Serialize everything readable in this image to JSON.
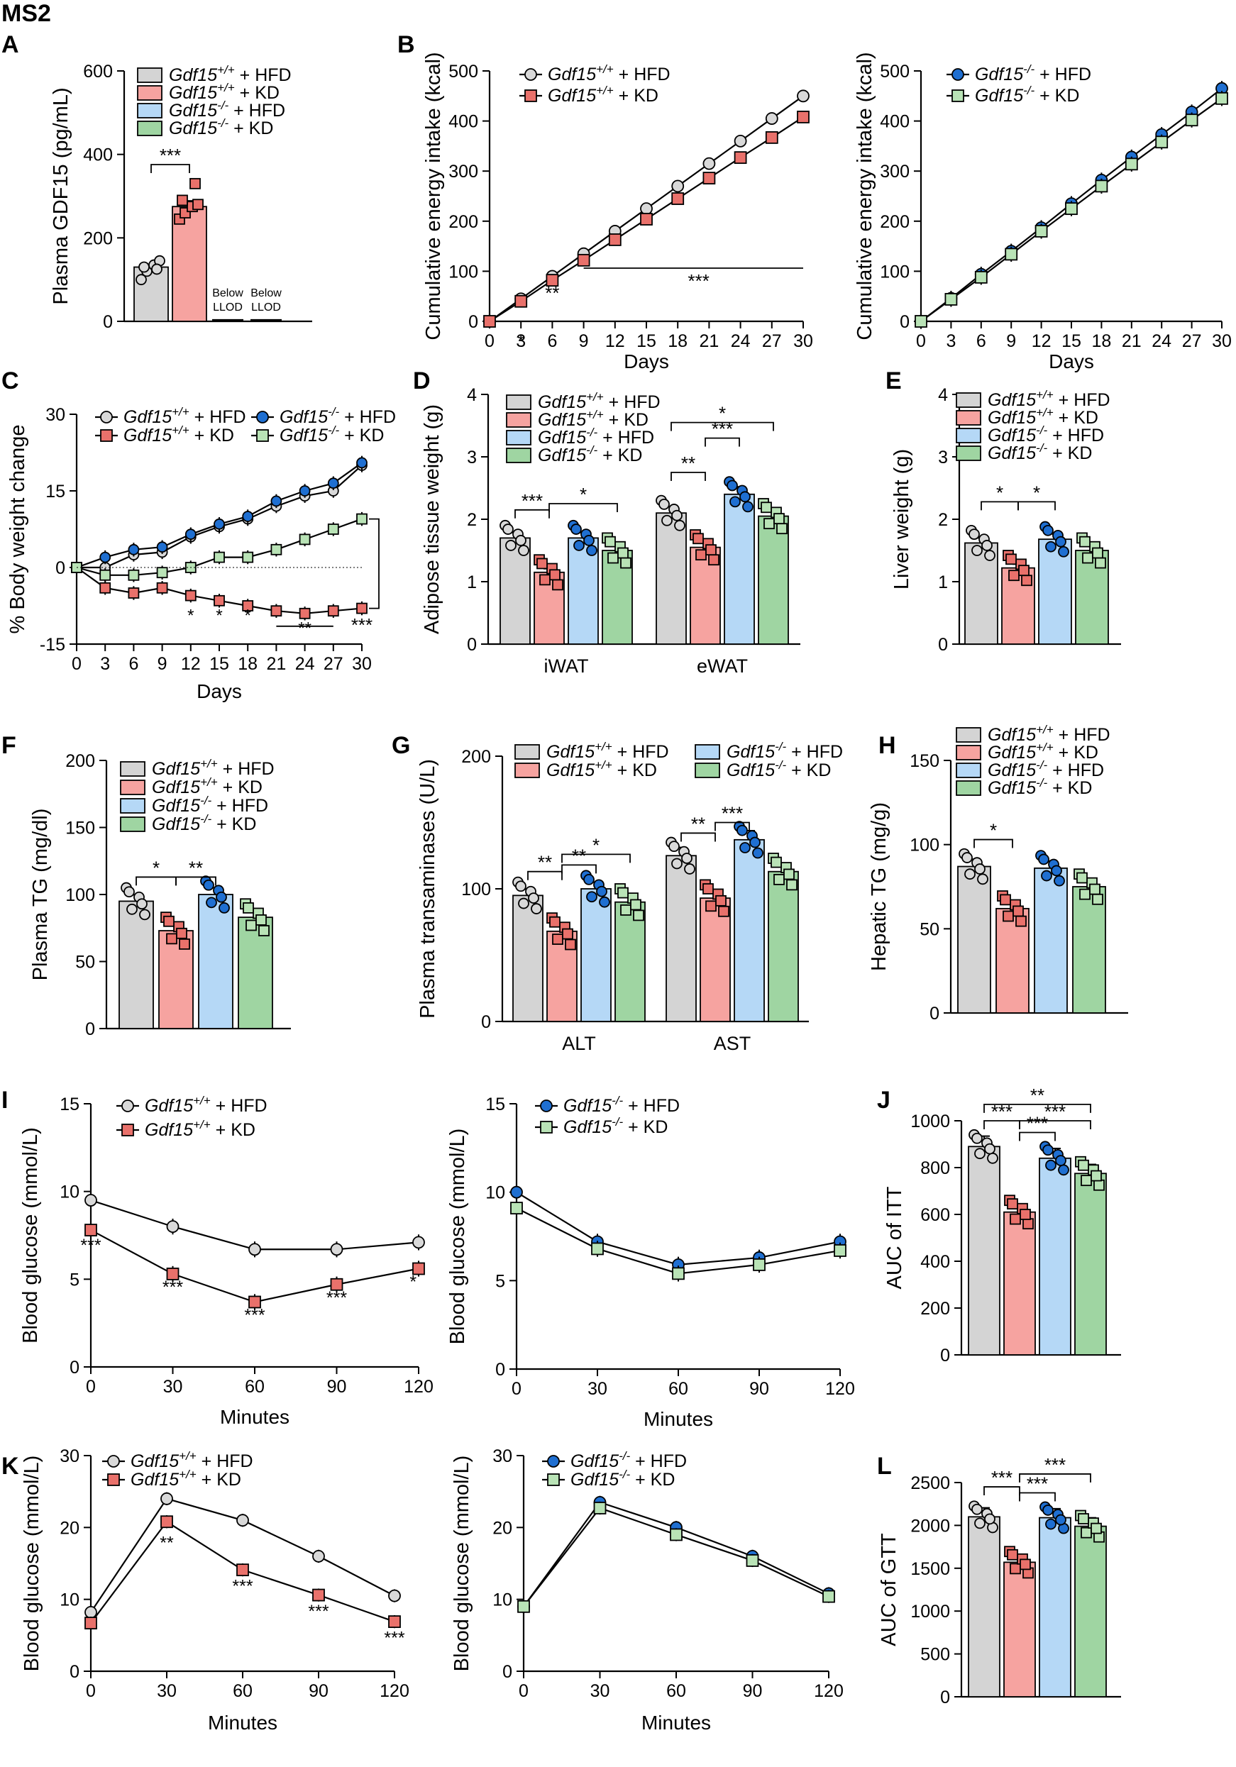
{
  "figure_label": "MS2",
  "colors": {
    "wt_hfd": "#d4d4d4",
    "wt_kd": "#f6a3a0",
    "ko_hfd": "#b5d8f6",
    "ko_kd": "#9fd5a2",
    "wt_kd_marker": "#e9716b",
    "ko_hfd_marker": "#1f6fd1",
    "ko_kd_marker": "#b9e3b6"
  },
  "legend_groups": {
    "wt_hfd": {
      "gene": "Gdf15",
      "sup": "+/+",
      "tail": " + HFD"
    },
    "wt_kd": {
      "gene": "Gdf15",
      "sup": "+/+",
      "tail": " + KD"
    },
    "ko_hfd": {
      "gene": "Gdf15",
      "sup": "-/-",
      "tail": " + HFD"
    },
    "ko_kd": {
      "gene": "Gdf15",
      "sup": "-/-",
      "tail": " + KD"
    }
  },
  "chart_data": [
    {
      "panel": "A",
      "type": "bar",
      "ylabel": "Plasma GDF15 (pg/mL)",
      "ylim": [
        0,
        600
      ],
      "yticks": [
        0,
        200,
        400,
        600
      ],
      "groups": [
        "wt_hfd",
        "wt_kd",
        "ko_hfd",
        "ko_kd"
      ],
      "values": [
        130,
        275,
        0,
        0
      ],
      "annotations": [
        "Below\nLLOD",
        "Below\nLLOD"
      ],
      "points": [
        [
          100,
          120,
          135,
          145,
          130,
          125
        ],
        [
          245,
          260,
          275,
          280,
          290,
          330
        ]
      ],
      "legend": [
        "wt_hfd",
        "wt_kd",
        "ko_hfd",
        "ko_kd"
      ],
      "legend_pos": "top-right",
      "significance": [
        {
          "label": "***",
          "between": [
            0,
            1
          ]
        }
      ]
    },
    {
      "panel": "B",
      "type": "line",
      "xlabel": "Days",
      "ylabel": "Cumulative energy intake (kcal)",
      "xlim": [
        0,
        30
      ],
      "ylim": [
        0,
        500
      ],
      "xticks": [
        0,
        3,
        6,
        9,
        12,
        15,
        18,
        21,
        24,
        27,
        30
      ],
      "yticks": [
        0,
        100,
        200,
        300,
        400,
        500
      ],
      "x": [
        0,
        3,
        6,
        9,
        12,
        15,
        18,
        21,
        24,
        27,
        30
      ],
      "series": [
        {
          "group": "wt_hfd",
          "values": [
            0,
            45,
            90,
            135,
            180,
            225,
            270,
            315,
            360,
            405,
            450
          ]
        },
        {
          "group": "wt_kd",
          "values": [
            0,
            40,
            82,
            122,
            163,
            204,
            245,
            286,
            327,
            367,
            408
          ]
        }
      ],
      "stars": [
        {
          "x": 3,
          "label": "*"
        },
        {
          "x": 6,
          "label": "**"
        },
        {
          "x": 20,
          "label": "***"
        }
      ]
    },
    {
      "panel": "B2",
      "type": "line",
      "xlabel": "Days",
      "ylabel": "Cumulative energy intake (kcal)",
      "xlim": [
        0,
        30
      ],
      "ylim": [
        0,
        500
      ],
      "xticks": [
        0,
        3,
        6,
        9,
        12,
        15,
        18,
        21,
        24,
        27,
        30
      ],
      "yticks": [
        0,
        100,
        200,
        300,
        400,
        500
      ],
      "x": [
        0,
        3,
        6,
        9,
        12,
        15,
        18,
        21,
        24,
        27,
        30
      ],
      "series": [
        {
          "group": "ko_hfd",
          "values": [
            0,
            46,
            94,
            140,
            187,
            235,
            282,
            328,
            373,
            418,
            465
          ]
        },
        {
          "group": "ko_kd",
          "values": [
            0,
            44,
            88,
            134,
            180,
            225,
            270,
            314,
            358,
            402,
            445
          ]
        }
      ]
    },
    {
      "panel": "C",
      "type": "line",
      "xlabel": "Days",
      "ylabel": "% Body weight change",
      "xlim": [
        0,
        30
      ],
      "ylim": [
        -15,
        30
      ],
      "xticks": [
        0,
        3,
        6,
        9,
        12,
        15,
        18,
        21,
        24,
        27,
        30
      ],
      "yticks": [
        -15,
        0,
        15,
        30
      ],
      "x": [
        0,
        3,
        6,
        9,
        12,
        15,
        18,
        21,
        24,
        27,
        30
      ],
      "series": [
        {
          "group": "wt_hfd",
          "values": [
            0,
            0,
            2.5,
            3,
            6,
            8,
            9.5,
            12,
            14,
            15,
            20
          ]
        },
        {
          "group": "wt_kd",
          "values": [
            0,
            -4,
            -5,
            -4,
            -5.5,
            -6.5,
            -7.5,
            -8.5,
            -9,
            -8.5,
            -8
          ]
        },
        {
          "group": "ko_hfd",
          "values": [
            0,
            2,
            3.5,
            4,
            6.5,
            8.5,
            10,
            13,
            15,
            16.5,
            20.5
          ]
        },
        {
          "group": "ko_kd",
          "values": [
            0,
            -1.5,
            -1.5,
            -1,
            0,
            2,
            2,
            3.5,
            5.5,
            7.5,
            9.5
          ]
        }
      ],
      "stars": [
        {
          "x": 12,
          "label": "*"
        },
        {
          "x": 15,
          "label": "*"
        },
        {
          "x": 18,
          "label": "*"
        },
        {
          "x": 24,
          "label": "**"
        },
        {
          "x": 30,
          "label": "***"
        }
      ]
    },
    {
      "panel": "D",
      "type": "bar",
      "ylabel": "Adipose tissue weight (g)",
      "ylim": [
        0,
        4
      ],
      "yticks": [
        0,
        1,
        2,
        3,
        4
      ],
      "categories": [
        "iWAT",
        "eWAT"
      ],
      "series": [
        {
          "group": "wt_hfd",
          "values": [
            1.7,
            2.1
          ]
        },
        {
          "group": "wt_kd",
          "values": [
            1.15,
            1.55
          ]
        },
        {
          "group": "ko_hfd",
          "values": [
            1.7,
            2.4
          ]
        },
        {
          "group": "ko_kd",
          "values": [
            1.5,
            2.05
          ]
        }
      ],
      "significance": [
        "***",
        "*",
        "**",
        "***",
        "*"
      ]
    },
    {
      "panel": "E",
      "type": "bar",
      "ylabel": "Liver weight (g)",
      "ylim": [
        0,
        4
      ],
      "yticks": [
        0,
        1,
        2,
        3,
        4
      ],
      "groups": [
        "wt_hfd",
        "wt_kd",
        "ko_hfd",
        "ko_kd"
      ],
      "values": [
        1.62,
        1.22,
        1.68,
        1.5
      ],
      "significance": [
        "*",
        "*"
      ]
    },
    {
      "panel": "F",
      "type": "bar",
      "ylabel": "Plasma TG (mg/dl)",
      "ylim": [
        0,
        200
      ],
      "yticks": [
        0,
        50,
        100,
        150,
        200
      ],
      "groups": [
        "wt_hfd",
        "wt_kd",
        "ko_hfd",
        "ko_kd"
      ],
      "values": [
        95,
        73,
        100,
        83
      ],
      "significance": [
        "*",
        "**"
      ]
    },
    {
      "panel": "G",
      "type": "bar",
      "ylabel": "Plasma transaminases (U/L)",
      "ylim": [
        0,
        200
      ],
      "yticks": [
        0,
        100,
        200
      ],
      "categories": [
        "ALT",
        "AST"
      ],
      "series": [
        {
          "group": "wt_hfd",
          "values": [
            95,
            125
          ]
        },
        {
          "group": "wt_kd",
          "values": [
            68,
            93
          ]
        },
        {
          "group": "ko_hfd",
          "values": [
            100,
            137
          ]
        },
        {
          "group": "ko_kd",
          "values": [
            90,
            113
          ]
        }
      ],
      "significance": [
        "**",
        "**",
        "*",
        "**",
        "***"
      ]
    },
    {
      "panel": "H",
      "type": "bar",
      "ylabel": "Hepatic TG (mg/g)",
      "ylim": [
        0,
        150
      ],
      "yticks": [
        0,
        50,
        100,
        150
      ],
      "groups": [
        "wt_hfd",
        "wt_kd",
        "ko_hfd",
        "ko_kd"
      ],
      "values": [
        87,
        62,
        86,
        75
      ],
      "significance": [
        "*"
      ]
    },
    {
      "panel": "I",
      "type": "line",
      "xlabel": "Minutes",
      "ylabel": "Blood glucose (mmol/L)",
      "xlim": [
        0,
        120
      ],
      "ylim": [
        0,
        15
      ],
      "xticks": [
        0,
        30,
        60,
        90,
        120
      ],
      "yticks": [
        0,
        5,
        10,
        15
      ],
      "x": [
        0,
        30,
        60,
        90,
        120
      ],
      "series": [
        {
          "group": "wt_hfd",
          "values": [
            9.5,
            8,
            6.7,
            6.7,
            7.1
          ]
        },
        {
          "group": "wt_kd",
          "values": [
            7.8,
            5.3,
            3.7,
            4.7,
            5.6
          ]
        }
      ],
      "stars": [
        "***",
        "***",
        "***",
        "***",
        "*"
      ]
    },
    {
      "panel": "I2",
      "type": "line",
      "xlabel": "Minutes",
      "ylabel": "Blood glucose (mmol/L)",
      "xlim": [
        0,
        120
      ],
      "ylim": [
        0,
        15
      ],
      "xticks": [
        0,
        30,
        60,
        90,
        120
      ],
      "yticks": [
        0,
        5,
        10,
        15
      ],
      "x": [
        0,
        30,
        60,
        90,
        120
      ],
      "series": [
        {
          "group": "ko_hfd",
          "values": [
            10,
            7.2,
            5.9,
            6.3,
            7.2
          ]
        },
        {
          "group": "ko_kd",
          "values": [
            9.1,
            6.8,
            5.4,
            5.9,
            6.7
          ]
        }
      ]
    },
    {
      "panel": "J",
      "type": "bar",
      "ylabel": "AUC of ITT",
      "ylim": [
        0,
        1000
      ],
      "yticks": [
        0,
        200,
        400,
        600,
        800,
        1000
      ],
      "groups": [
        "wt_hfd",
        "wt_kd",
        "ko_hfd",
        "ko_kd"
      ],
      "values": [
        890,
        610,
        840,
        775
      ],
      "significance": [
        "***",
        "**",
        "***",
        "***"
      ]
    },
    {
      "panel": "K",
      "type": "line",
      "xlabel": "Minutes",
      "ylabel": "Blood glucose (mmol/L)",
      "xlim": [
        0,
        120
      ],
      "ylim": [
        0,
        30
      ],
      "xticks": [
        0,
        30,
        60,
        90,
        120
      ],
      "yticks": [
        0,
        10,
        20,
        30
      ],
      "x": [
        0,
        30,
        60,
        90,
        120
      ],
      "series": [
        {
          "group": "wt_hfd",
          "values": [
            8.2,
            24,
            21,
            16,
            10.5
          ]
        },
        {
          "group": "wt_kd",
          "values": [
            6.7,
            20.8,
            14.1,
            10.6,
            6.9
          ]
        }
      ],
      "stars": [
        "",
        "**",
        "***",
        "***",
        "***"
      ]
    },
    {
      "panel": "K2",
      "type": "line",
      "xlabel": "Minutes",
      "ylabel": "Blood glucose (mmol/L)",
      "xlim": [
        0,
        120
      ],
      "ylim": [
        0,
        30
      ],
      "xticks": [
        0,
        30,
        60,
        90,
        120
      ],
      "yticks": [
        0,
        10,
        20,
        30
      ],
      "x": [
        0,
        30,
        60,
        90,
        120
      ],
      "series": [
        {
          "group": "ko_hfd",
          "values": [
            9,
            23.5,
            20,
            16,
            10.8
          ]
        },
        {
          "group": "ko_kd",
          "values": [
            9,
            22.7,
            19,
            15.4,
            10.4
          ]
        }
      ]
    },
    {
      "panel": "L",
      "type": "bar",
      "ylabel": "AUC of GTT",
      "ylim": [
        0,
        2500
      ],
      "yticks": [
        0,
        500,
        1000,
        1500,
        2000,
        2500
      ],
      "groups": [
        "wt_hfd",
        "wt_kd",
        "ko_hfd",
        "ko_kd"
      ],
      "values": [
        2100,
        1570,
        2090,
        1990
      ],
      "significance": [
        "***",
        "***",
        "***"
      ]
    }
  ]
}
